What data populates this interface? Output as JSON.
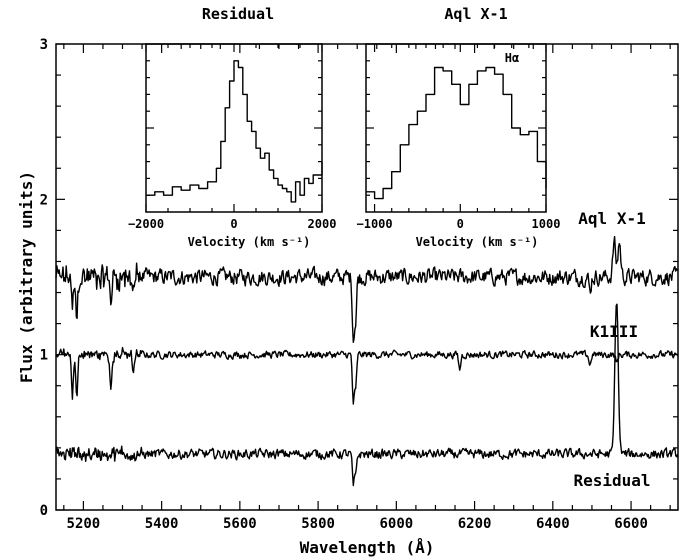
{
  "chart_data": [
    {
      "id": "main",
      "type": "line",
      "xlabel": "Wavelength (Å)",
      "ylabel": "Flux (arbitrary units)",
      "xlim": [
        5130,
        6720
      ],
      "ylim": [
        0,
        3
      ],
      "xticks": [
        5200,
        5400,
        5600,
        5800,
        6000,
        6200,
        6400,
        6600
      ],
      "yticks": [
        0,
        1,
        2,
        3
      ],
      "grid": false,
      "series": [
        {
          "name": "Aql X-1",
          "baseline": 1.5,
          "noise": 0.05,
          "features": [
            {
              "x": 5172,
              "depth": 0.22
            },
            {
              "x": 5183,
              "depth": 0.28
            },
            {
              "x": 5270,
              "depth": 0.15
            },
            {
              "x": 5328,
              "depth": 0.08
            },
            {
              "x": 5890,
              "depth": 0.38
            },
            {
              "x": 5896,
              "depth": 0.28
            },
            {
              "x": 6495,
              "depth": 0.1
            },
            {
              "x": 6563,
              "height": 0.25,
              "double": true
            }
          ],
          "points": [
            [
              5130,
              1.62
            ],
            [
              5150,
              1.55
            ],
            [
              5172,
              1.28
            ],
            [
              5183,
              1.22
            ],
            [
              5200,
              1.45
            ],
            [
              5270,
              1.35
            ],
            [
              5400,
              1.52
            ],
            [
              5600,
              1.5
            ],
            [
              5800,
              1.49
            ],
            [
              5890,
              1.12
            ],
            [
              5896,
              1.22
            ],
            [
              5950,
              1.5
            ],
            [
              6200,
              1.5
            ],
            [
              6400,
              1.5
            ],
            [
              6495,
              1.4
            ],
            [
              6555,
              1.72
            ],
            [
              6563,
              1.68
            ],
            [
              6572,
              1.72
            ],
            [
              6620,
              1.5
            ],
            [
              6720,
              1.46
            ]
          ]
        },
        {
          "name": "K1III",
          "baseline": 1.0,
          "noise": 0.022,
          "features": [
            {
              "x": 5172,
              "depth": 0.25
            },
            {
              "x": 5183,
              "depth": 0.28
            },
            {
              "x": 5270,
              "depth": 0.22
            },
            {
              "x": 5328,
              "depth": 0.12
            },
            {
              "x": 5890,
              "depth": 0.3
            },
            {
              "x": 5896,
              "depth": 0.22
            },
            {
              "x": 6162,
              "depth": 0.1
            },
            {
              "x": 6495,
              "depth": 0.07
            },
            {
              "x": 6563,
              "depth": 0.06
            }
          ],
          "points": [
            [
              5130,
              1.0
            ],
            [
              5172,
              0.75
            ],
            [
              5183,
              0.72
            ],
            [
              5270,
              0.78
            ],
            [
              5400,
              0.98
            ],
            [
              5600,
              0.99
            ],
            [
              5800,
              0.98
            ],
            [
              5890,
              0.7
            ],
            [
              5896,
              0.78
            ],
            [
              6000,
              0.98
            ],
            [
              6162,
              0.9
            ],
            [
              6400,
              0.98
            ],
            [
              6563,
              0.94
            ],
            [
              6720,
              0.97
            ]
          ]
        },
        {
          "name": "Residual",
          "baseline": 0.36,
          "noise": 0.03,
          "features": [
            {
              "x": 5890,
              "depth": 0.2
            },
            {
              "x": 5896,
              "depth": 0.14
            },
            {
              "x": 6563,
              "height": 1.0,
              "double": false
            }
          ],
          "points": [
            [
              5130,
              0.45
            ],
            [
              5200,
              0.36
            ],
            [
              5400,
              0.36
            ],
            [
              5600,
              0.37
            ],
            [
              5800,
              0.36
            ],
            [
              5890,
              0.16
            ],
            [
              5896,
              0.22
            ],
            [
              6000,
              0.37
            ],
            [
              6400,
              0.36
            ],
            [
              6563,
              1.36
            ],
            [
              6600,
              0.38
            ],
            [
              6720,
              0.35
            ]
          ]
        }
      ]
    },
    {
      "id": "inset-residual",
      "type": "line",
      "title": "Residual",
      "xlabel": "Velocity (km s⁻¹)",
      "xlim": [
        -2000,
        2000
      ],
      "xticks": [
        -2000,
        0,
        2000
      ],
      "ylim": [
        0,
        1
      ],
      "series": [
        {
          "name": "",
          "x": [
            -2000,
            -1800,
            -1600,
            -1400,
            -1200,
            -1000,
            -800,
            -600,
            -400,
            -300,
            -200,
            -100,
            0,
            100,
            200,
            300,
            400,
            500,
            600,
            700,
            800,
            900,
            1000,
            1100,
            1200,
            1300,
            1400,
            1500,
            1600,
            1700,
            1800,
            2000
          ],
          "y": [
            0.1,
            0.12,
            0.1,
            0.15,
            0.13,
            0.16,
            0.14,
            0.18,
            0.26,
            0.42,
            0.62,
            0.78,
            0.9,
            0.86,
            0.7,
            0.54,
            0.48,
            0.38,
            0.32,
            0.35,
            0.25,
            0.2,
            0.16,
            0.14,
            0.12,
            0.06,
            0.18,
            0.1,
            0.2,
            0.17,
            0.22,
            0.3
          ]
        }
      ]
    },
    {
      "id": "inset-aql",
      "type": "line",
      "title": "Aql X-1",
      "annotation": "Hα",
      "xlabel": "Velocity (km s⁻¹)",
      "xlim": [
        -1100,
        1000
      ],
      "xticks": [
        -1000,
        0,
        1000
      ],
      "ylim": [
        0,
        1
      ],
      "series": [
        {
          "name": "",
          "x": [
            -1100,
            -1000,
            -900,
            -800,
            -700,
            -600,
            -500,
            -400,
            -300,
            -200,
            -100,
            0,
            100,
            200,
            300,
            400,
            500,
            600,
            700,
            800,
            900,
            1000
          ],
          "y": [
            0.12,
            0.08,
            0.14,
            0.24,
            0.4,
            0.52,
            0.6,
            0.7,
            0.86,
            0.84,
            0.76,
            0.64,
            0.76,
            0.84,
            0.86,
            0.82,
            0.7,
            0.5,
            0.46,
            0.48,
            0.3,
            0.14
          ]
        }
      ]
    }
  ]
}
